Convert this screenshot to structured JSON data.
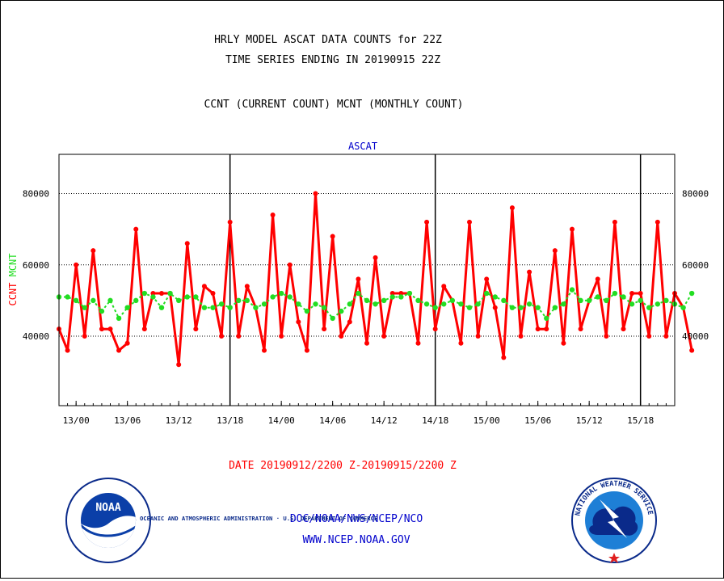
{
  "header": {
    "title_line1": "HRLY MODEL ASCAT DATA COUNTS for 22Z",
    "title_line2": "TIME SERIES ENDING IN 20190915 22Z",
    "subtitle": "CCNT (CURRENT COUNT) MCNT (MONTHLY COUNT)"
  },
  "footer": {
    "date_range": "DATE 20190912/2200 Z-20190915/2200 Z",
    "org_line": "DOC/NOAA/NWS/NCEP/NCO",
    "website": "WWW.NCEP.NOAA.GOV",
    "noaa_logo_text": "NOAA",
    "noaa_ring_text": "NATIONAL OCEANIC AND ATMOSPHERIC ADMINISTRATION · U.S. DEPARTMENT OF COMMERCE",
    "nws_ring_text": "NATIONAL WEATHER SERVICE"
  },
  "colors": {
    "ccnt": "#ff0000",
    "mcnt": "#22dd22",
    "panel_title": "#0000cc",
    "date_text": "#ff0000",
    "footer_text": "#0000cc"
  },
  "chart_data": {
    "type": "line",
    "title": "ASCAT",
    "ylabel_parts": [
      {
        "text": "CCNT",
        "color": "#ff0000"
      },
      {
        "text": "MCNT",
        "color": "#22dd22"
      }
    ],
    "xlabel": "",
    "x_start_hour": -2,
    "x_end_hour": 70,
    "ylim": [
      20500,
      91000
    ],
    "yticks": [
      40000,
      60000,
      80000
    ],
    "ytick_labels": [
      "40000",
      "60000",
      "80000"
    ],
    "grid": true,
    "xticks": [
      {
        "hour": 0,
        "label": "13/00"
      },
      {
        "hour": 6,
        "label": "13/06"
      },
      {
        "hour": 12,
        "label": "13/12"
      },
      {
        "hour": 18,
        "label": "13/18"
      },
      {
        "hour": 24,
        "label": "14/00"
      },
      {
        "hour": 30,
        "label": "14/06"
      },
      {
        "hour": 36,
        "label": "14/12"
      },
      {
        "hour": 42,
        "label": "14/18"
      },
      {
        "hour": 48,
        "label": "15/00"
      },
      {
        "hour": 54,
        "label": "15/06"
      },
      {
        "hour": 60,
        "label": "15/12"
      },
      {
        "hour": 66,
        "label": "15/18"
      }
    ],
    "day_lines": [
      18,
      42,
      66
    ],
    "series": [
      {
        "name": "CCNT",
        "values": [
          42000,
          36000,
          60000,
          40000,
          64000,
          42000,
          42000,
          36000,
          38000,
          70000,
          42000,
          52000,
          52000,
          52000,
          32000,
          66000,
          42000,
          54000,
          52000,
          40000,
          72000,
          40000,
          54000,
          48000,
          36000,
          74000,
          40000,
          60000,
          44000,
          36000,
          80000,
          42000,
          68000,
          40000,
          44000,
          56000,
          38000,
          62000,
          40000,
          52000,
          52000,
          52000,
          38000,
          72000,
          42000,
          54000,
          50000,
          38000,
          72000,
          40000,
          56000,
          48000,
          34000,
          76000,
          40000,
          58000,
          42000,
          42000,
          64000,
          38000,
          70000,
          42000,
          50000,
          56000,
          40000,
          72000,
          42000,
          52000,
          52000,
          40000,
          72000,
          40000,
          52000,
          48000,
          36000
        ]
      },
      {
        "name": "MCNT",
        "values": [
          51000,
          51000,
          50000,
          48000,
          50000,
          47000,
          50000,
          45000,
          48000,
          50000,
          52000,
          51000,
          48000,
          52000,
          50000,
          51000,
          51000,
          48000,
          48000,
          49000,
          48000,
          50000,
          50000,
          48000,
          49000,
          51000,
          52000,
          51000,
          49000,
          47000,
          49000,
          48000,
          45000,
          47000,
          49000,
          52000,
          50000,
          49000,
          50000,
          51000,
          51000,
          52000,
          50000,
          49000,
          48000,
          49000,
          50000,
          49000,
          48000,
          49000,
          52000,
          51000,
          50000,
          48000,
          48000,
          49000,
          48000,
          45000,
          48000,
          49000,
          53000,
          50000,
          50000,
          51000,
          50000,
          52000,
          51000,
          49000,
          50000,
          48000,
          49000,
          50000,
          49000,
          48000,
          52000
        ]
      }
    ]
  }
}
